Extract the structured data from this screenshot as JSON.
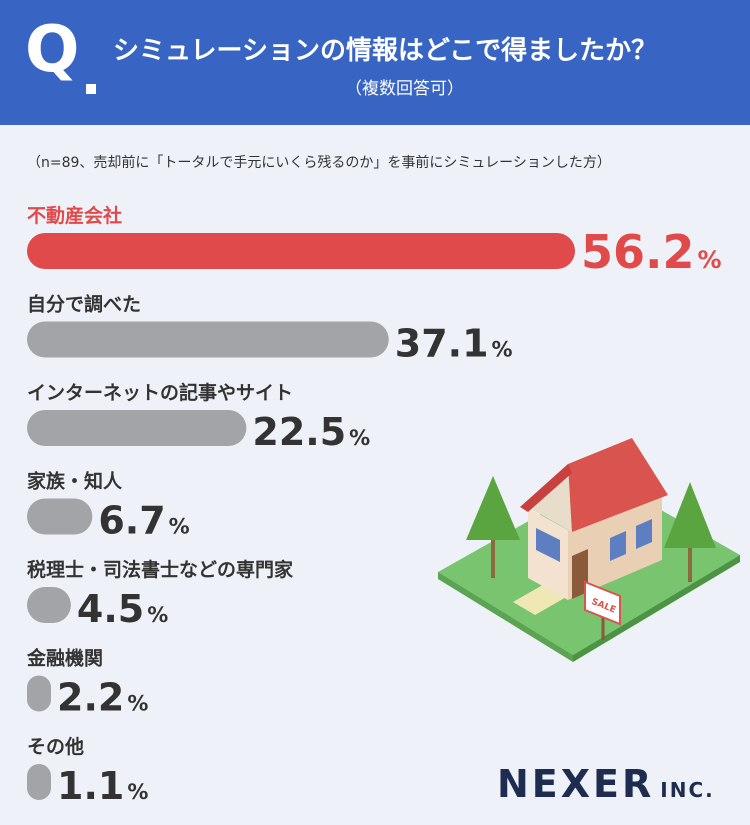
{
  "header": {
    "q_label": "Q",
    "title": "シミュレーションの情報はどこで得ましたか？",
    "subtitle": "（複数回答可）"
  },
  "note": "（n=89、売却前に「トータルで手元にいくら残るのか」を事前にシミュレーションした方）",
  "colors": {
    "header": "#3864c4",
    "highlight": "#e04a4a",
    "bar": "#a3a4a7",
    "value_text": "#333333",
    "background": "#eef2f8"
  },
  "chart_data": {
    "type": "bar",
    "orientation": "horizontal",
    "categories": [
      "不動産会社",
      "自分で調べた",
      "インターネットの記事やサイト",
      "家族・知人",
      "税理士・司法書士などの専門家",
      "金融機関",
      "その他"
    ],
    "values": [
      56.2,
      37.1,
      22.5,
      6.7,
      4.5,
      2.2,
      1.1
    ],
    "value_labels": [
      "56.2",
      "37.1",
      "22.5",
      "6.7",
      "4.5",
      "2.2",
      "1.1"
    ],
    "unit": "%",
    "highlight_index": 0
  },
  "illustration": {
    "sign_text": "SALE"
  },
  "brand": {
    "name": "NEXER",
    "suffix": "INC."
  }
}
